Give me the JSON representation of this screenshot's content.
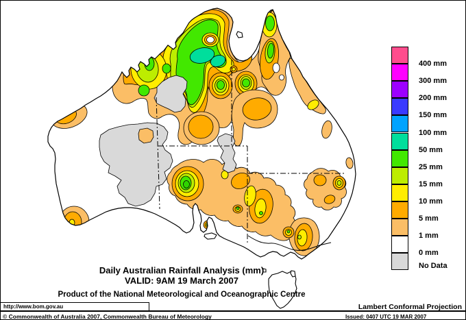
{
  "title": {
    "line1": "Daily Australian Rainfall Analysis (mm)",
    "line2": "VALID: 9AM 19 March 2007",
    "line3": "Product of the National Meteorological and Oceanographic Centre"
  },
  "footer": {
    "url": "http://www.bom.gov.au",
    "projection": "Lambert Conformal Projection",
    "copyright": "© Commonwealth of Australia 2007, Commonwealth Bureau of Meteorology",
    "issued": "Issued: 0407 UTC 19 MAR 2007"
  },
  "legend": {
    "entries": [
      {
        "label": "400 mm",
        "color": "#FF4D8D"
      },
      {
        "label": "300 mm",
        "color": "#FF00FF"
      },
      {
        "label": "200 mm",
        "color": "#9D00FF"
      },
      {
        "label": "150 mm",
        "color": "#3A3AFF"
      },
      {
        "label": "100 mm",
        "color": "#00A3FF"
      },
      {
        "label": "50 mm",
        "color": "#00DE9C"
      },
      {
        "label": "25 mm",
        "color": "#42E800"
      },
      {
        "label": "15 mm",
        "color": "#BDED00"
      },
      {
        "label": "10 mm",
        "color": "#FFED00"
      },
      {
        "label": "5 mm",
        "color": "#FFAB00"
      },
      {
        "label": "1 mm",
        "color": "#FBBE66"
      },
      {
        "label": "0 mm",
        "color": "#FFFFFF"
      },
      {
        "label": "No Data",
        "color": "#D9D9D9"
      }
    ]
  },
  "map": {
    "region": "Australia",
    "land_color": "#FFFFFF",
    "no_data_color": "#D9D9D9",
    "contour_line_color": "#000000"
  }
}
